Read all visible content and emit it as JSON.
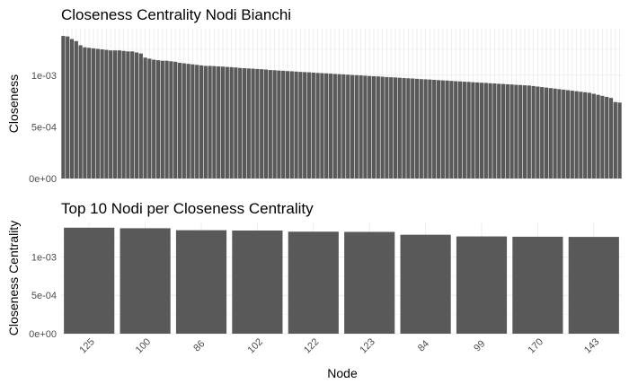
{
  "chart_data": [
    {
      "type": "bar",
      "title": "Closeness Centrality Nodi Bianchi",
      "xlabel": "",
      "ylabel": "Closeness",
      "ylim": [
        0,
        0.00145
      ],
      "yticks": [
        0,
        0.0005,
        0.001
      ],
      "ytick_labels": [
        "0e+00",
        "5e-04",
        "1e-03"
      ],
      "grid": true,
      "bar_color": "#595959",
      "values": [
        0.00138,
        0.001375,
        0.00135,
        0.00133,
        0.00129,
        0.00127,
        0.001265,
        0.00126,
        0.001255,
        0.00125,
        0.001245,
        0.00124,
        0.00124,
        0.00124,
        0.001235,
        0.00123,
        0.00123,
        0.00122,
        0.00121,
        0.00117,
        0.00116,
        0.00115,
        0.001145,
        0.00114,
        0.00114,
        0.001135,
        0.00113,
        0.00112,
        0.001115,
        0.00111,
        0.001105,
        0.0011,
        0.001095,
        0.00109,
        0.00109,
        0.001088,
        0.001085,
        0.001083,
        0.00108,
        0.001078,
        0.001075,
        0.00107,
        0.001068,
        0.001065,
        0.001063,
        0.00106,
        0.001058,
        0.001055,
        0.00105,
        0.001048,
        0.001045,
        0.001043,
        0.00104,
        0.001038,
        0.001035,
        0.001032,
        0.00103,
        0.001028,
        0.001025,
        0.001022,
        0.00102,
        0.001018,
        0.001015,
        0.001012,
        0.00101,
        0.001008,
        0.001005,
        0.001002,
        0.001,
        0.000998,
        0.000995,
        0.000992,
        0.00099,
        0.000988,
        0.000985,
        0.000982,
        0.00098,
        0.000978,
        0.000975,
        0.000972,
        0.00097,
        0.000968,
        0.000965,
        0.000962,
        0.00096,
        0.000958,
        0.000955,
        0.000952,
        0.00095,
        0.000948,
        0.000945,
        0.000942,
        0.00094,
        0.000937,
        0.000935,
        0.000932,
        0.00093,
        0.000927,
        0.000925,
        0.000922,
        0.00092,
        0.000917,
        0.000915,
        0.000912,
        0.00091,
        0.000907,
        0.000905,
        0.000902,
        0.0009,
        0.000895,
        0.00089,
        0.000885,
        0.00088,
        0.000875,
        0.00087,
        0.000865,
        0.00086,
        0.000855,
        0.00085,
        0.000845,
        0.00084,
        0.000835,
        0.00083,
        0.00082,
        0.00081,
        0.0008,
        0.00079,
        0.00078,
        0.00074,
        0.000735
      ]
    },
    {
      "type": "bar",
      "title": "Top 10 Nodi per Closeness Centrality",
      "xlabel": "Node",
      "ylabel": "Closeness Centrality",
      "ylim": [
        0,
        0.00145
      ],
      "yticks": [
        0,
        0.0005,
        0.001
      ],
      "ytick_labels": [
        "0e+00",
        "5e-04",
        "1e-03"
      ],
      "grid": true,
      "bar_color": "#595959",
      "categories": [
        "125",
        "100",
        "86",
        "102",
        "122",
        "123",
        "84",
        "99",
        "170",
        "143"
      ],
      "values": [
        0.001382,
        0.001375,
        0.001349,
        0.001345,
        0.00133,
        0.001327,
        0.00129,
        0.001268,
        0.001264,
        0.001262
      ]
    }
  ]
}
